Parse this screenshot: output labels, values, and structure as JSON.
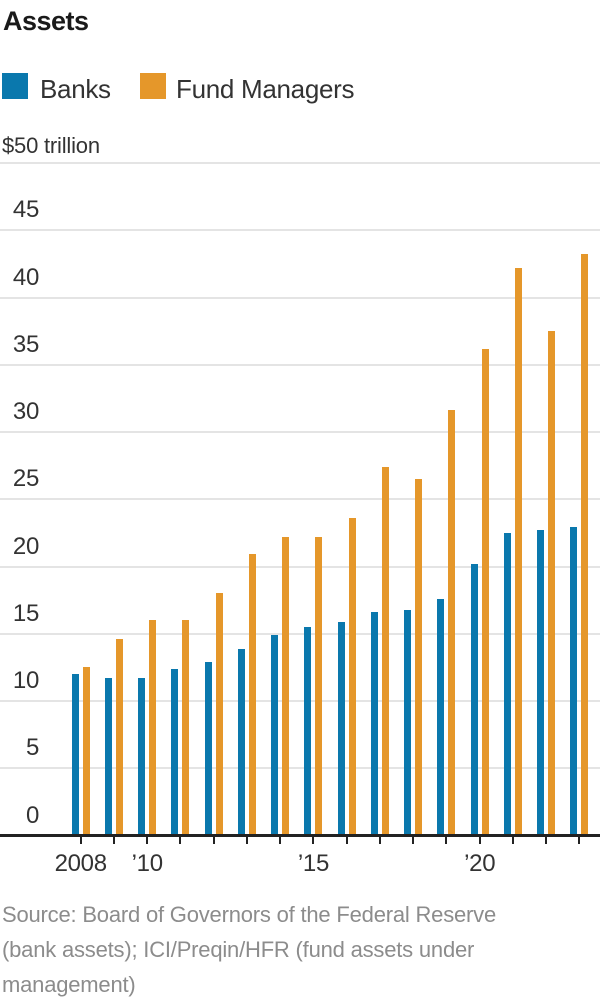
{
  "title": "Assets",
  "legend": [
    {
      "label": "Banks",
      "color": "#0a78ad"
    },
    {
      "label": "Fund Managers",
      "color": "#e5972a"
    }
  ],
  "y_axis": {
    "unit_label": "$50 trillion",
    "max": 50,
    "step": 5,
    "tick_values": [
      45,
      40,
      35,
      30,
      25,
      20,
      15,
      10,
      5,
      0
    ]
  },
  "x_axis": {
    "tick_labels": {
      "0": "2008",
      "2": "’10",
      "7": "’15",
      "12": "’20"
    }
  },
  "source": {
    "lines": [
      "Source: Board of Governors of the Federal Reserve",
      "(bank assets); ICI/Preqin/HFR (fund assets under",
      "management)"
    ]
  },
  "chart_data": {
    "type": "bar",
    "title": "Assets",
    "ylabel": "$ trillion",
    "ylim": [
      0,
      50
    ],
    "grid": true,
    "legend_position": "top-left",
    "categories": [
      "2008",
      "2009",
      "2010",
      "2011",
      "2012",
      "2013",
      "2014",
      "2015",
      "2016",
      "2017",
      "2018",
      "2019",
      "2020",
      "2021",
      "2022",
      "2023"
    ],
    "series": [
      {
        "name": "Banks",
        "color": "#0a78ad",
        "values": [
          12.0,
          11.7,
          11.7,
          12.4,
          12.9,
          13.9,
          14.9,
          15.5,
          15.9,
          16.6,
          16.8,
          17.6,
          20.2,
          22.5,
          22.7,
          22.9
        ]
      },
      {
        "name": "Fund Managers",
        "color": "#e5972a",
        "values": [
          12.5,
          14.6,
          16.0,
          16.0,
          18.0,
          20.9,
          22.2,
          22.2,
          23.6,
          27.4,
          26.5,
          31.6,
          36.2,
          42.2,
          37.5,
          43.2
        ]
      }
    ]
  }
}
